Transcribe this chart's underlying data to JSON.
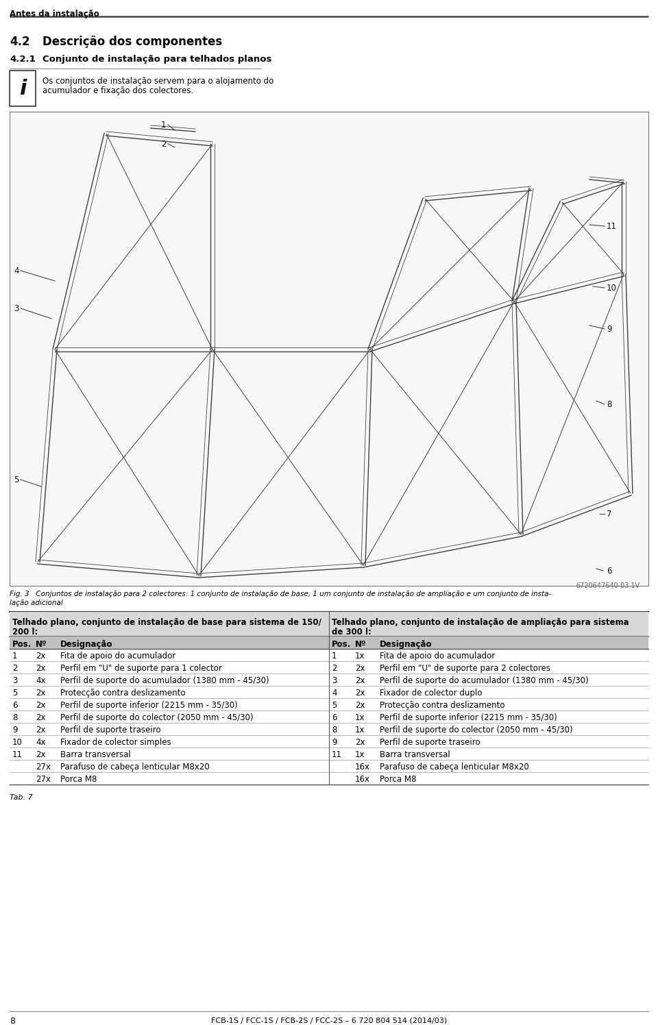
{
  "page_header": "Antes da instalação",
  "section_number": "4.2",
  "section_title": "Descrição dos componentes",
  "subsection_number": "4.2.1",
  "subsection_title": "Conjunto de instalação para telhados planos",
  "info_text_line1": "Os conjuntos de instalação servem para o alojamento do",
  "info_text_line2": "acumulador e fixação dos colectores.",
  "fig_caption_line1": "Fig. 3   Conjuntos de instalação para 2 colectores: 1 conjunto de instalação de base, 1 um conjunto de instalação de ampliação e um conjunto de insta-",
  "fig_caption_line2": "lação adicional",
  "fig_code": "6720647640-03.1V",
  "table_header_left_line1": "Telhado plano, conjunto de instalação de base para sistema de 150/",
  "table_header_left_line2": "200 l:",
  "table_header_right_line1": "Telhado plano, conjunto de instalação de ampliação para sistema",
  "table_header_right_line2": "de 300 l:",
  "table_left": [
    [
      "1",
      "2x",
      "Fita de apoio do acumulador"
    ],
    [
      "2",
      "2x",
      "Perfil em \"U\" de suporte para 1 colector"
    ],
    [
      "3",
      "4x",
      "Perfil de suporte do acumulador (1380 mm - 45/30)"
    ],
    [
      "5",
      "2x",
      "Protecção contra deslizamento"
    ],
    [
      "6",
      "2x",
      "Perfil de suporte inferior (2215 mm - 35/30)"
    ],
    [
      "8",
      "2x",
      "Perfil de suporte do colector (2050 mm - 45/30)"
    ],
    [
      "9",
      "2x",
      "Perfil de suporte traseiro"
    ],
    [
      "10",
      "4x",
      "Fixador de colector simples"
    ],
    [
      "11",
      "2x",
      "Barra transversal"
    ],
    [
      "",
      "27x",
      "Parafuso de cabeça lenticular M8x20"
    ],
    [
      "",
      "27x",
      "Porca M8"
    ]
  ],
  "table_right": [
    [
      "1",
      "1x",
      "Fita de apoio do acumulador"
    ],
    [
      "2",
      "2x",
      "Perfil em \"U\" de suporte para 2 colectores"
    ],
    [
      "3",
      "2x",
      "Perfil de suporte do acumulador (1380 mm - 45/30)"
    ],
    [
      "4",
      "2x",
      "Fixador de colector duplo"
    ],
    [
      "5",
      "2x",
      "Protecção contra deslizamento"
    ],
    [
      "6",
      "1x",
      "Perfil de suporte inferior (2215 mm - 35/30)"
    ],
    [
      "8",
      "1x",
      "Perfil de suporte do colector (2050 mm - 45/30)"
    ],
    [
      "9",
      "2x",
      "Perfil de suporte traseiro"
    ],
    [
      "11",
      "1x",
      "Barra transversal"
    ],
    [
      "",
      "16x",
      "Parafuso de cabeça lenticular M8x20"
    ],
    [
      "",
      "16x",
      "Porca M8"
    ]
  ],
  "tab_label": "Tab. 7",
  "page_number": "8",
  "footer_text": "FCB-1S / FCC-1S / FCB-2S / FCC-2S – 6 720 804 514 (2014/03)",
  "bg_color": "#ffffff",
  "text_color": "#000000",
  "table_header_bg": "#d8d8d8",
  "col_header_bg": "#c0c0c0",
  "row_line_color": "#aaaaaa",
  "diagram_border": "#888888",
  "diagram_bg": "#f0f0f0"
}
